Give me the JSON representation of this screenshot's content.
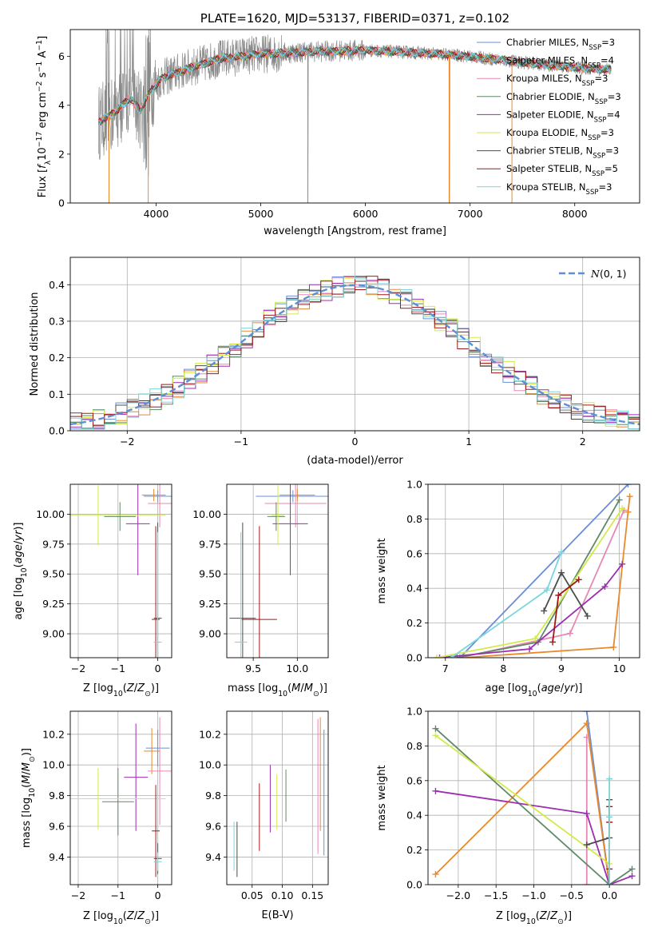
{
  "colors": {
    "chabrier_miles": "#6a8fd8",
    "salpeter_miles": "#e8892b",
    "kroupa_miles": "#e688b6",
    "chabrier_elodie": "#5e8a68",
    "salpeter_elodie": "#9b2fb0",
    "kroupa_elodie": "#d2ea4b",
    "chabrier_stelib": "#4d4d4d",
    "salpeter_stelib": "#a01818",
    "kroupa_stelib": "#7ad6dc",
    "spectrum": "#8a8a8a",
    "gauss": "#5b8fd6"
  },
  "chart_data": [
    {
      "type": "line",
      "panel": "spectrum",
      "title": "PLATE=1620, MJD=53137, FIBERID=0371, z=0.102",
      "xlabel": "wavelength [Angstrom, rest frame]",
      "ylabel": "Flux [fλ10⁻¹⁷ erg cm⁻² s⁻¹ A⁻¹]",
      "xlim": [
        3180,
        8620
      ],
      "ylim": [
        0,
        7.1
      ],
      "xticks": [
        4000,
        5000,
        6000,
        7000,
        8000
      ],
      "yticks": [
        0,
        2,
        4,
        6
      ],
      "grid": false,
      "legend_position": "top-right",
      "legend": [
        {
          "key": "chabrier_miles",
          "label": "Chabrier MILES, N",
          "sub": "SSP",
          "suffix": "=3"
        },
        {
          "key": "salpeter_miles",
          "label": "Salpeter MILES, N",
          "sub": "SSP",
          "suffix": "=4"
        },
        {
          "key": "kroupa_miles",
          "label": "Kroupa MILES, N",
          "sub": "SSP",
          "suffix": "=3"
        },
        {
          "key": "chabrier_elodie",
          "label": "Chabrier ELODIE, N",
          "sub": "SSP",
          "suffix": "=3"
        },
        {
          "key": "salpeter_elodie",
          "label": "Salpeter ELODIE, N",
          "sub": "SSP",
          "suffix": "=4"
        },
        {
          "key": "kroupa_elodie",
          "label": "Kroupa ELODIE, N",
          "sub": "SSP",
          "suffix": "=3"
        },
        {
          "key": "chabrier_stelib",
          "label": "Chabrier STELIB, N",
          "sub": "SSP",
          "suffix": "=3"
        },
        {
          "key": "salpeter_stelib",
          "label": "Salpeter STELIB, N",
          "sub": "SSP",
          "suffix": "=5"
        },
        {
          "key": "kroupa_stelib",
          "label": "Kroupa STELIB, N",
          "sub": "SSP",
          "suffix": "=3"
        }
      ],
      "continuum": [
        [
          3450,
          3.3
        ],
        [
          3600,
          3.7
        ],
        [
          3750,
          4.3
        ],
        [
          3850,
          3.8
        ],
        [
          3950,
          4.6
        ],
        [
          4050,
          5.1
        ],
        [
          4300,
          5.5
        ],
        [
          4600,
          5.9
        ],
        [
          5000,
          6.1
        ],
        [
          5500,
          6.2
        ],
        [
          6000,
          6.25
        ],
        [
          6500,
          6.15
        ],
        [
          7000,
          6.0
        ],
        [
          7500,
          5.75
        ],
        [
          8000,
          5.55
        ],
        [
          8350,
          5.45
        ]
      ]
    },
    {
      "type": "bar",
      "panel": "residuals",
      "xlabel": "(data-model)/error",
      "ylabel": "Normed distribution",
      "xlim": [
        -2.5,
        2.5
      ],
      "ylim": [
        0,
        0.475
      ],
      "xticks": [
        -2,
        -1,
        0,
        1,
        2
      ],
      "yticks": [
        0.0,
        0.1,
        0.2,
        0.3,
        0.4
      ],
      "grid": true,
      "legend_position": "top-right",
      "gauss_label": "N(0, 1)",
      "bins": [
        -2.5,
        -2.4,
        -2.3,
        -2.2,
        -2.1,
        -2.0,
        -1.9,
        -1.8,
        -1.7,
        -1.6,
        -1.5,
        -1.4,
        -1.3,
        -1.2,
        -1.1,
        -1.0,
        -0.9,
        -0.8,
        -0.7,
        -0.6,
        -0.5,
        -0.4,
        -0.3,
        -0.2,
        -0.1,
        0.0,
        0.1,
        0.2,
        0.3,
        0.4,
        0.5,
        0.6,
        0.7,
        0.8,
        0.9,
        1.0,
        1.1,
        1.2,
        1.3,
        1.4,
        1.5,
        1.6,
        1.7,
        1.8,
        1.9,
        2.0,
        2.1,
        2.2,
        2.3,
        2.4,
        2.5
      ]
    },
    {
      "type": "scatter",
      "panel": "age-vs-Z",
      "xlabel": "Z [log₁₀(Z/Z⊙)]",
      "ylabel": "age  [log₁₀(age/yr)]",
      "xlim": [
        -2.2,
        0.35
      ],
      "ylim": [
        8.8,
        10.25
      ],
      "xticks": [
        -2,
        -1,
        0
      ],
      "yticks": [
        9.0,
        9.25,
        9.5,
        9.75,
        10.0
      ],
      "grid": true,
      "points": [
        {
          "key": "chabrier_miles",
          "x": 0.0,
          "xerr": 0.35,
          "y": 10.15,
          "yerr": 0.05
        },
        {
          "key": "salpeter_miles",
          "x": -0.1,
          "xerr": 0.3,
          "y": 10.16,
          "yerr": 0.05
        },
        {
          "key": "kroupa_miles",
          "x": 0.05,
          "xerr": 0.3,
          "y": 10.09,
          "yerr": 0.2
        },
        {
          "key": "chabrier_elodie",
          "x": -0.95,
          "xerr": 0.4,
          "y": 9.98,
          "yerr": 0.12
        },
        {
          "key": "salpeter_elodie",
          "x": -0.5,
          "xerr": 0.3,
          "y": 9.92,
          "yerr": 0.43
        },
        {
          "key": "kroupa_elodie",
          "x": -1.5,
          "xerr": 1.7,
          "y": 9.99,
          "yerr": 0.25
        },
        {
          "key": "chabrier_stelib",
          "x": 0.0,
          "xerr": 0.1,
          "y": 9.13,
          "yerr": 0.8
        },
        {
          "key": "salpeter_stelib",
          "x": -0.05,
          "xerr": 0.1,
          "y": 9.12,
          "yerr": 0.78
        },
        {
          "key": "kroupa_stelib",
          "x": 0.0,
          "xerr": 0.1,
          "y": 8.93,
          "yerr": 0.92
        }
      ]
    },
    {
      "type": "scatter",
      "panel": "age-vs-mass",
      "xlabel": "mass [log₁₀(M/M⊙)]",
      "xlim": [
        9.2,
        10.35
      ],
      "ylim": [
        8.8,
        10.25
      ],
      "xticks": [
        9.5,
        10.0
      ],
      "yticks": [
        9.0,
        9.25,
        9.5,
        9.75,
        10.0
      ],
      "grid": true,
      "points": [
        {
          "key": "chabrier_miles",
          "x": 9.95,
          "xerr": 0.42,
          "y": 10.15,
          "yerr": 0.05
        },
        {
          "key": "salpeter_miles",
          "x": 10.0,
          "xerr": 0.2,
          "y": 10.16,
          "yerr": 0.05
        },
        {
          "key": "kroupa_miles",
          "x": 9.98,
          "xerr": 0.35,
          "y": 10.09,
          "yerr": 0.2
        },
        {
          "key": "chabrier_elodie",
          "x": 9.76,
          "xerr": 0.1,
          "y": 9.98,
          "yerr": 0.12
        },
        {
          "key": "salpeter_elodie",
          "x": 9.92,
          "xerr": 0.2,
          "y": 9.92,
          "yerr": 0.43
        },
        {
          "key": "kroupa_elodie",
          "x": 9.78,
          "xerr": 0.07,
          "y": 9.99,
          "yerr": 0.25
        },
        {
          "key": "chabrier_stelib",
          "x": 9.38,
          "xerr": 0.15,
          "y": 9.13,
          "yerr": 0.8
        },
        {
          "key": "salpeter_stelib",
          "x": 9.57,
          "xerr": 0.2,
          "y": 9.12,
          "yerr": 0.78
        },
        {
          "key": "kroupa_stelib",
          "x": 9.36,
          "xerr": 0.07,
          "y": 8.93,
          "yerr": 0.92
        }
      ]
    },
    {
      "type": "line",
      "panel": "weight-vs-age",
      "xlabel": "age  [log₁₀(age/yr)]",
      "ylabel": "mass weight",
      "xlim": [
        6.7,
        10.35
      ],
      "ylim": [
        0,
        1
      ],
      "xticks": [
        7,
        8,
        9,
        10
      ],
      "yticks": [
        0.0,
        0.2,
        0.4,
        0.6,
        0.8,
        1.0
      ],
      "grid": true,
      "series": [
        {
          "key": "chabrier_miles",
          "points": [
            [
              7.25,
              0.0
            ],
            [
              10.15,
              1.0
            ]
          ]
        },
        {
          "key": "salpeter_miles",
          "points": [
            [
              7.3,
              0.0
            ],
            [
              9.9,
              0.06
            ],
            [
              10.15,
              0.84
            ],
            [
              10.18,
              0.93
            ]
          ]
        },
        {
          "key": "kroupa_miles",
          "points": [
            [
              7.25,
              0.0
            ],
            [
              9.15,
              0.14
            ],
            [
              10.08,
              0.85
            ]
          ]
        },
        {
          "key": "chabrier_elodie",
          "points": [
            [
              7.2,
              0.0
            ],
            [
              8.6,
              0.09
            ],
            [
              10.0,
              0.91
            ]
          ]
        },
        {
          "key": "salpeter_elodie",
          "points": [
            [
              6.9,
              0.0
            ],
            [
              8.45,
              0.05
            ],
            [
              9.75,
              0.41
            ],
            [
              10.05,
              0.54
            ]
          ]
        },
        {
          "key": "kroupa_elodie",
          "points": [
            [
              6.85,
              0.0
            ],
            [
              8.55,
              0.11
            ],
            [
              10.05,
              0.86
            ]
          ]
        },
        {
          "key": "chabrier_stelib",
          "points": [
            [
              8.7,
              0.27
            ],
            [
              9.0,
              0.49
            ],
            [
              9.45,
              0.24
            ]
          ]
        },
        {
          "key": "salpeter_stelib",
          "points": [
            [
              8.85,
              0.09
            ],
            [
              8.95,
              0.36
            ],
            [
              9.3,
              0.45
            ]
          ]
        },
        {
          "key": "kroupa_stelib",
          "points": [
            [
              7.1,
              0.0
            ],
            [
              8.75,
              0.39
            ],
            [
              9.0,
              0.61
            ]
          ]
        }
      ]
    },
    {
      "type": "scatter",
      "panel": "mass-vs-Z",
      "xlabel": "Z [log₁₀(Z/Z⊙)]",
      "ylabel": "mass [log₁₀(M/M⊙)]",
      "xlim": [
        -2.2,
        0.35
      ],
      "ylim": [
        9.22,
        10.35
      ],
      "xticks": [
        -2,
        -1,
        0
      ],
      "yticks": [
        9.4,
        9.6,
        9.8,
        10.0,
        10.2
      ],
      "grid": true,
      "points": [
        {
          "key": "chabrier_miles",
          "x": 0.0,
          "xerr": 0.3,
          "y": 10.11,
          "yerr": 0.12
        },
        {
          "key": "salpeter_miles",
          "x": -0.15,
          "xerr": 0.2,
          "y": 10.09,
          "yerr": 0.15
        },
        {
          "key": "kroupa_miles",
          "x": 0.05,
          "xerr": 0.3,
          "y": 9.96,
          "yerr": 0.35
        },
        {
          "key": "chabrier_elodie",
          "x": -1.0,
          "xerr": 0.4,
          "y": 9.76,
          "yerr": 0.22
        },
        {
          "key": "salpeter_elodie",
          "x": -0.55,
          "xerr": 0.3,
          "y": 9.92,
          "yerr": 0.35
        },
        {
          "key": "kroupa_elodie",
          "x": -1.5,
          "xerr": 1.7,
          "y": 9.78,
          "yerr": 0.2
        },
        {
          "key": "chabrier_stelib",
          "x": 0.0,
          "xerr": 0.1,
          "y": 9.39,
          "yerr": 0.1
        },
        {
          "key": "salpeter_stelib",
          "x": -0.05,
          "xerr": 0.1,
          "y": 9.57,
          "yerr": 0.3
        },
        {
          "key": "kroupa_stelib",
          "x": 0.0,
          "xerr": 0.1,
          "y": 9.37,
          "yerr": 0.06
        }
      ]
    },
    {
      "type": "scatter",
      "panel": "mass-vs-EBV",
      "xlabel": "E(B-V)",
      "xlim": [
        0.008,
        0.176
      ],
      "ylim": [
        9.22,
        10.35
      ],
      "xticks": [
        0.05,
        0.1,
        0.15
      ],
      "xtick_labels": [
        "0.05",
        "0.10",
        "0.15"
      ],
      "yticks": [
        9.4,
        9.6,
        9.8,
        10.0,
        10.2
      ],
      "grid": true,
      "points": [
        {
          "key": "chabrier_miles",
          "x": 0.169,
          "xerr": 0.0,
          "y": 9.82,
          "yerr": 0.41
        },
        {
          "key": "salpeter_miles",
          "x": 0.163,
          "xerr": 0.0,
          "y": 9.94,
          "yerr": 0.37
        },
        {
          "key": "kroupa_miles",
          "x": 0.159,
          "xerr": 0.0,
          "y": 9.86,
          "yerr": 0.44
        },
        {
          "key": "chabrier_elodie",
          "x": 0.106,
          "xerr": 0.0,
          "y": 9.8,
          "yerr": 0.17
        },
        {
          "key": "salpeter_elodie",
          "x": 0.08,
          "xerr": 0.0,
          "y": 9.78,
          "yerr": 0.22
        },
        {
          "key": "kroupa_elodie",
          "x": 0.091,
          "xerr": 0.0,
          "y": 9.76,
          "yerr": 0.18
        },
        {
          "key": "chabrier_stelib",
          "x": 0.025,
          "xerr": 0.0,
          "y": 9.45,
          "yerr": 0.18
        },
        {
          "key": "salpeter_stelib",
          "x": 0.062,
          "xerr": 0.0,
          "y": 9.66,
          "yerr": 0.22
        },
        {
          "key": "kroupa_stelib",
          "x": 0.02,
          "xerr": 0.0,
          "y": 9.47,
          "yerr": 0.16
        }
      ]
    },
    {
      "type": "line",
      "panel": "weight-vs-Z",
      "xlabel": "Z [log₁₀(Z/Z⊙)]",
      "ylabel": "mass weight",
      "xlim": [
        -2.4,
        0.4
      ],
      "ylim": [
        0,
        1
      ],
      "xticks": [
        -2.0,
        -1.5,
        -1.0,
        -0.5,
        0.0
      ],
      "xtick_labels": [
        "−2.0",
        "−1.5",
        "−1.0",
        "−0.5",
        "0.0"
      ],
      "yticks": [
        0.0,
        0.2,
        0.4,
        0.6,
        0.8,
        1.0
      ],
      "grid": true,
      "series": [
        {
          "key": "chabrier_miles",
          "points": [
            [
              -0.3,
              1.0
            ],
            [
              0.0,
              0.0
            ]
          ]
        },
        {
          "key": "salpeter_miles",
          "points": [
            [
              -2.3,
              0.06
            ],
            [
              -0.3,
              0.93
            ],
            [
              0.0,
              0.0
            ]
          ]
        },
        {
          "key": "kroupa_miles",
          "points": [
            [
              -0.3,
              0.85
            ],
            [
              -0.3,
              0.0
            ]
          ]
        },
        {
          "key": "chabrier_elodie",
          "points": [
            [
              -2.3,
              0.9
            ],
            [
              0.0,
              0.0
            ],
            [
              0.3,
              0.09
            ]
          ]
        },
        {
          "key": "salpeter_elodie",
          "points": [
            [
              -2.3,
              0.54
            ],
            [
              -0.3,
              0.41
            ],
            [
              0.0,
              0.0
            ],
            [
              0.3,
              0.05
            ]
          ]
        },
        {
          "key": "kroupa_elodie",
          "points": [
            [
              -2.3,
              0.86
            ],
            [
              0.0,
              0.12
            ]
          ]
        },
        {
          "key": "chabrier_stelib",
          "points": [
            [
              -0.3,
              0.23
            ],
            [
              0.0,
              0.27
            ],
            [
              0.0,
              0.49
            ]
          ]
        },
        {
          "key": "salpeter_stelib",
          "points": [
            [
              0.0,
              0.09
            ],
            [
              0.0,
              0.36
            ],
            [
              0.0,
              0.45
            ]
          ]
        },
        {
          "key": "kroupa_stelib",
          "points": [
            [
              0.0,
              0.0
            ],
            [
              0.0,
              0.39
            ],
            [
              0.0,
              0.61
            ]
          ]
        }
      ]
    }
  ]
}
